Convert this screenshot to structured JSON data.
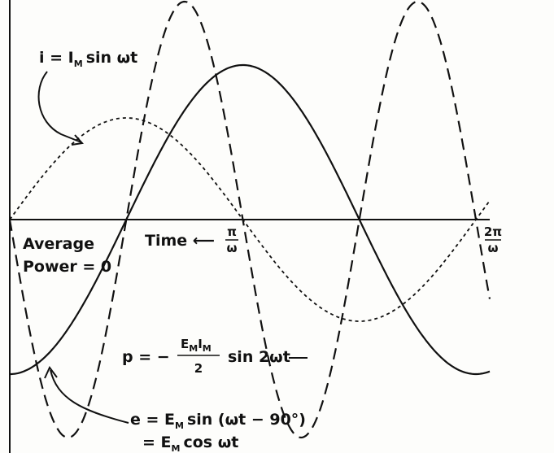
{
  "labels": {
    "current": {
      "lead": "i = I",
      "sub": "M",
      "tail": "sin ωt"
    },
    "average": "Average",
    "power_zero": "Power = 0",
    "time": "Time ⟵",
    "pi_num": "π",
    "pi_den": "ω",
    "two_pi_num": "2π",
    "two_pi_den": "ω",
    "power": {
      "lead": "p = −",
      "num": "E",
      "num_sub1": "M",
      "num_mid": "I",
      "num_sub2": "M",
      "den": "2",
      "tail": "sin 2ωt"
    },
    "voltage1": {
      "lead": "e = E",
      "sub": "M",
      "tail": "sin (ωt − 90°)"
    },
    "voltage2": {
      "lead": "= E",
      "sub": "M",
      "tail": "cos ωt"
    }
  }
}
